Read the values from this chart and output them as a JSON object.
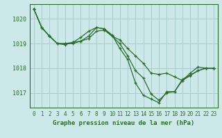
{
  "title": "Graphe pression niveau de la mer (hPa)",
  "background_color": "#cce8e8",
  "grid_color": "#aacccc",
  "line_color": "#2d6b2d",
  "ylim": [
    1016.4,
    1020.6
  ],
  "yticks": [
    1017,
    1018,
    1019,
    1020
  ],
  "xlim": [
    -0.5,
    23.5
  ],
  "xticks": [
    0,
    1,
    2,
    3,
    4,
    5,
    6,
    7,
    8,
    9,
    10,
    11,
    12,
    13,
    14,
    15,
    16,
    17,
    18,
    19,
    20,
    21,
    22,
    23
  ],
  "series": [
    [
      1020.4,
      1019.65,
      1019.3,
      1019.0,
      1019.0,
      1019.0,
      1019.1,
      1019.2,
      1019.5,
      1019.55,
      1019.3,
      1019.15,
      1018.8,
      1018.5,
      1018.2,
      1017.8,
      1017.75,
      1017.8,
      1017.65,
      1017.5,
      1017.8,
      1018.05,
      1018.0,
      1018.0
    ],
    [
      1020.4,
      1019.65,
      1019.3,
      1019.0,
      1018.95,
      1019.05,
      1019.25,
      1019.5,
      1019.65,
      1019.6,
      1019.35,
      1018.8,
      1018.35,
      1017.4,
      1016.9,
      1016.75,
      1016.6,
      1017.05,
      1017.05,
      1017.55,
      1017.72,
      1017.9,
      1018.0,
      1018.0
    ],
    [
      1020.4,
      1019.65,
      1019.3,
      1019.0,
      1019.0,
      1019.05,
      1019.1,
      1019.3,
      1019.65,
      1019.6,
      1019.3,
      1019.0,
      1018.5,
      1017.9,
      1017.6,
      1016.95,
      1016.7,
      1017.0,
      1017.05,
      1017.5,
      1017.7,
      1017.9,
      1018.0,
      1018.0
    ]
  ]
}
